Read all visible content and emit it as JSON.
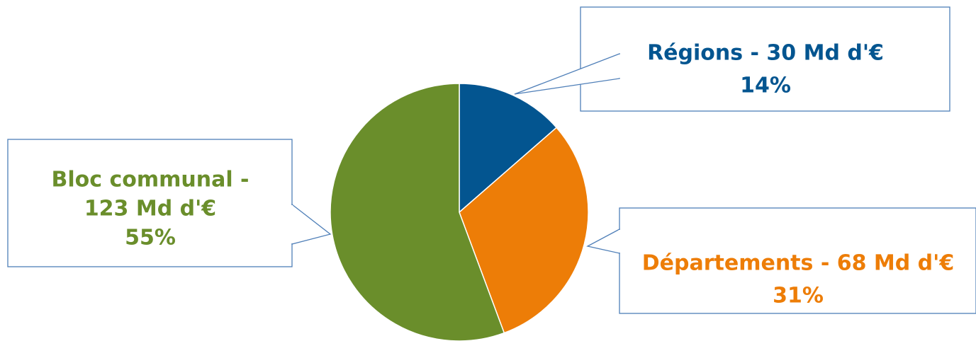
{
  "chart_data": {
    "type": "pie",
    "start_angle_deg": 0,
    "direction": "clockwise",
    "slices": [
      {
        "label": "Régions - 30 Md d'€",
        "percent_label": "14%",
        "value": 30,
        "color": "#035590"
      },
      {
        "label": "Départements - 68 Md d'€",
        "percent_label": "31%",
        "value": 68,
        "color": "#ED7D07"
      },
      {
        "label": "Bloc communal - 123 Md d'€",
        "percent_label": "55%",
        "value": 123,
        "color": "#6A8E2B"
      }
    ],
    "callouts": [
      {
        "lines": [
          "Régions - 30 Md d'€",
          "14%"
        ],
        "text_color": "#035590"
      },
      {
        "lines": [
          "Départements - 68 Md d'€",
          "31%"
        ],
        "text_color": "#ED7D07"
      },
      {
        "lines": [
          "Bloc communal -",
          "123 Md d'€",
          "55%"
        ],
        "text_color": "#6A8E2B"
      }
    ]
  }
}
